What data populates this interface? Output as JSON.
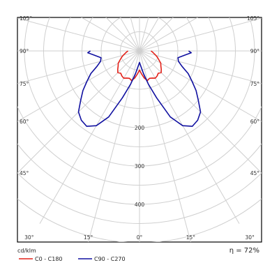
{
  "chart_data": {
    "type": "polar",
    "unit_label": "cd/klm",
    "efficiency_label": "η = 72%",
    "radial_ticks": [
      {
        "label": "200",
        "value": 200
      },
      {
        "label": "300",
        "value": 300
      },
      {
        "label": "400",
        "value": 400
      }
    ],
    "radial_max": 520,
    "radial_grid_step": 50,
    "side_angle_labels": [
      "105°",
      "90°",
      "75°",
      "60°",
      "45°"
    ],
    "side_angle_values": [
      105,
      90,
      75,
      60,
      45
    ],
    "bottom_angle_labels": [
      "30°",
      "15°",
      "0°",
      "15°",
      "30°"
    ],
    "bottom_angle_values": [
      -30,
      -15,
      0,
      15,
      30
    ],
    "angular_grid_step_deg": 15,
    "series": [
      {
        "name": "C0 - C180",
        "color": "#e32119",
        "angles": [
          0,
          5,
          10,
          15,
          20,
          25,
          30,
          35,
          40,
          45,
          50,
          55,
          60,
          65,
          70,
          75,
          80,
          85,
          90
        ],
        "values": [
          50,
          60,
          72,
          80,
          76,
          78,
          82,
          80,
          76,
          80,
          74,
          68,
          64,
          56,
          50,
          44,
          38,
          34,
          30
        ]
      },
      {
        "name": "C90 - C270",
        "color": "#1010a0",
        "angles": [
          0,
          5,
          10,
          15,
          20,
          25,
          30,
          35,
          40,
          45,
          50,
          55,
          60,
          65,
          70,
          75,
          80,
          85,
          88,
          90
        ],
        "values": [
          30,
          40,
          60,
          90,
          130,
          190,
          225,
          240,
          236,
          225,
          200,
          180,
          158,
          140,
          118,
          105,
          102,
          120,
          135,
          128
        ]
      }
    ]
  }
}
